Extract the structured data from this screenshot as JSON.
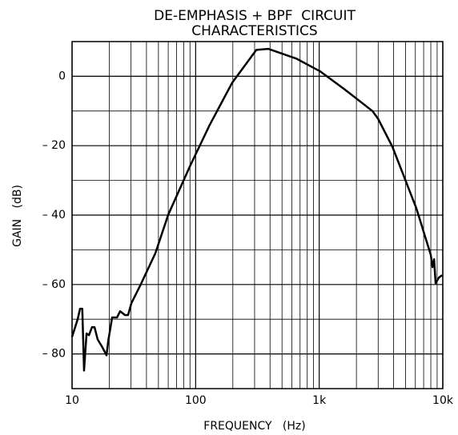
{
  "chart_data": {
    "type": "line",
    "title": [
      "DE-EMPHASIS + BPF  CIRCUIT",
      "CHARACTERISTICS"
    ],
    "x_label": "FREQUENCY   (Hz)",
    "y_label": "GAIN   (dB)",
    "xscale": "log",
    "grid": true,
    "xlim": [
      10,
      10000
    ],
    "ylim": [
      -90,
      10
    ],
    "xticks": [
      10,
      100,
      {
        "value": 1000,
        "label": "1k"
      },
      {
        "value": 10000,
        "label": "10k"
      }
    ],
    "yticks": [
      0,
      {
        "value": -20,
        "label": "– 20"
      },
      {
        "value": -40,
        "label": "– 40"
      },
      {
        "value": -60,
        "label": "– 60"
      },
      {
        "value": -80,
        "label": "– 80"
      }
    ],
    "xminor": [
      20,
      30,
      40,
      50,
      60,
      70,
      80,
      90,
      200,
      300,
      400,
      500,
      600,
      700,
      800,
      900,
      2000,
      3000,
      4000,
      5000,
      6000,
      7000,
      8000,
      9000
    ],
    "yminor": [
      10,
      -10,
      -30,
      -50,
      -70,
      -90
    ],
    "series": [
      {
        "color": "#000000",
        "x": [
          10,
          11.1,
          11.6,
          12.1,
          12.5,
          13.1,
          13.7,
          14.5,
          15.2,
          16.1,
          17.6,
          19.0,
          19.6,
          21.1,
          23.1,
          24.5,
          26.8,
          28.4,
          30.2,
          35.6,
          47.2,
          60,
          89.7,
          130,
          198,
          310,
          387,
          653,
          1021,
          1597,
          2693,
          2990,
          3910,
          6120,
          8000,
          8250,
          8500,
          8750,
          9300,
          9870
        ],
        "values": [
          -75.1,
          -70,
          -67,
          -67,
          -84.8,
          -74.1,
          -74.6,
          -72.3,
          -72.3,
          -75.8,
          -78.1,
          -80.4,
          -76.4,
          -69.5,
          -69.5,
          -67.7,
          -68.8,
          -68.8,
          -65.4,
          -60.3,
          -51,
          -39.9,
          -26,
          -14,
          -1.8,
          7.6,
          7.9,
          5.1,
          1.4,
          -3.7,
          -10,
          -12.2,
          -20.3,
          -38.1,
          -51.5,
          -55,
          -52.7,
          -59.6,
          -58,
          -57.3
        ]
      }
    ]
  }
}
